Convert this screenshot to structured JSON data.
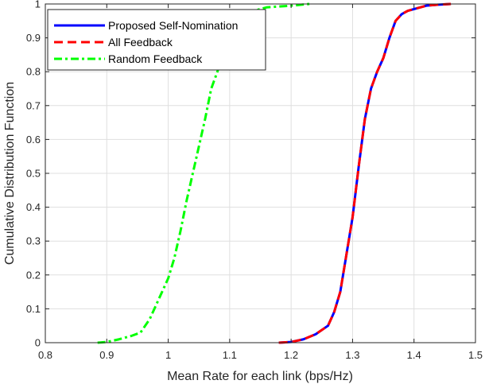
{
  "chart_data": {
    "type": "line",
    "title": "",
    "xlabel": "Mean Rate for each link (bps/Hz)",
    "ylabel": "Cumulative Distribution Function",
    "xlim": [
      0.8,
      1.5
    ],
    "ylim": [
      0,
      1
    ],
    "xticks": [
      "0.8",
      "0.9",
      "1",
      "1.1",
      "1.2",
      "1.3",
      "1.4",
      "1.5"
    ],
    "yticks": [
      "0",
      "0.1",
      "0.2",
      "0.3",
      "0.4",
      "0.5",
      "0.6",
      "0.7",
      "0.8",
      "0.9",
      "1"
    ],
    "grid": true,
    "legend_position": "top-left",
    "series": [
      {
        "name": "Proposed Self-Nomination",
        "color": "#0000ff",
        "style": "solid",
        "x": [
          1.18,
          1.2,
          1.22,
          1.24,
          1.26,
          1.27,
          1.28,
          1.29,
          1.3,
          1.31,
          1.32,
          1.33,
          1.34,
          1.35,
          1.36,
          1.37,
          1.38,
          1.39,
          1.4,
          1.41,
          1.42,
          1.44,
          1.46
        ],
        "y": [
          0.0,
          0.002,
          0.01,
          0.025,
          0.05,
          0.09,
          0.15,
          0.26,
          0.37,
          0.52,
          0.66,
          0.75,
          0.8,
          0.84,
          0.9,
          0.95,
          0.97,
          0.98,
          0.985,
          0.99,
          0.995,
          0.998,
          1.0
        ]
      },
      {
        "name": "All Feedback",
        "color": "#ff0000",
        "style": "dashed",
        "x": [
          1.18,
          1.2,
          1.22,
          1.24,
          1.26,
          1.27,
          1.28,
          1.29,
          1.3,
          1.31,
          1.32,
          1.33,
          1.34,
          1.35,
          1.36,
          1.37,
          1.38,
          1.39,
          1.4,
          1.41,
          1.42,
          1.44,
          1.46
        ],
        "y": [
          0.0,
          0.002,
          0.01,
          0.025,
          0.05,
          0.09,
          0.15,
          0.26,
          0.37,
          0.52,
          0.66,
          0.75,
          0.8,
          0.84,
          0.9,
          0.95,
          0.97,
          0.98,
          0.985,
          0.99,
          0.995,
          0.998,
          1.0
        ]
      },
      {
        "name": "Random Feedback",
        "color": "#00ff00",
        "style": "dashdot",
        "x": [
          0.885,
          0.9,
          0.92,
          0.94,
          0.955,
          0.97,
          0.98,
          0.99,
          1.0,
          1.01,
          1.02,
          1.03,
          1.04,
          1.05,
          1.06,
          1.07,
          1.08,
          1.09,
          1.1,
          1.12,
          1.14,
          1.16,
          1.2,
          1.23
        ],
        "y": [
          0.0,
          0.002,
          0.01,
          0.02,
          0.03,
          0.07,
          0.11,
          0.15,
          0.19,
          0.25,
          0.33,
          0.42,
          0.5,
          0.58,
          0.66,
          0.75,
          0.8,
          0.86,
          0.9,
          0.96,
          0.98,
          0.99,
          0.995,
          1.0
        ]
      }
    ]
  }
}
